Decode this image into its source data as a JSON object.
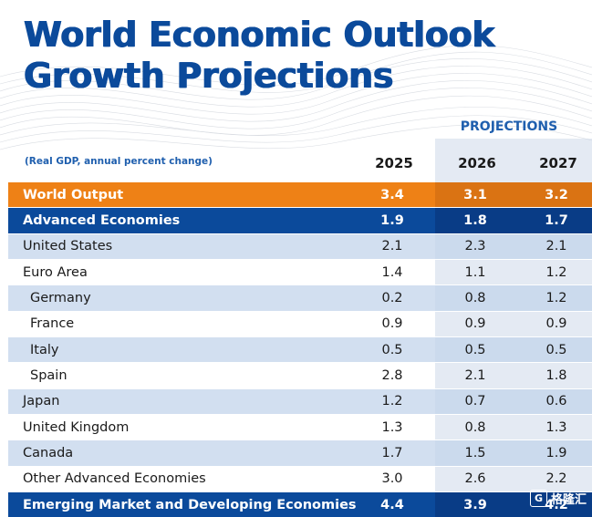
{
  "title_line1": "World Economic Outlook",
  "title_line2": "Growth Projections",
  "projections_label": "PROJECTIONS",
  "unit_label": "(Real GDP, annual percent change)",
  "years": [
    "2025",
    "2026",
    "2027"
  ],
  "rows": [
    {
      "label": "World Output",
      "values": [
        "3.4",
        "3.1",
        "3.2"
      ],
      "style": "orange"
    },
    {
      "label": "Advanced Economies",
      "values": [
        "1.9",
        "1.8",
        "1.7"
      ],
      "style": "navy"
    },
    {
      "label": "United States",
      "values": [
        "2.1",
        "2.3",
        "2.1"
      ],
      "style": "light"
    },
    {
      "label": "Euro Area",
      "values": [
        "1.4",
        "1.1",
        "1.2"
      ],
      "style": "white"
    },
    {
      "label": "Germany",
      "values": [
        "0.2",
        "0.8",
        "1.2"
      ],
      "style": "light",
      "indent": true
    },
    {
      "label": "France",
      "values": [
        "0.9",
        "0.9",
        "0.9"
      ],
      "style": "white",
      "indent": true
    },
    {
      "label": "Italy",
      "values": [
        "0.5",
        "0.5",
        "0.5"
      ],
      "style": "light",
      "indent": true
    },
    {
      "label": "Spain",
      "values": [
        "2.8",
        "2.1",
        "1.8"
      ],
      "style": "white",
      "indent": true
    },
    {
      "label": "Japan",
      "values": [
        "1.2",
        "0.7",
        "0.6"
      ],
      "style": "light"
    },
    {
      "label": "United Kingdom",
      "values": [
        "1.3",
        "0.8",
        "1.3"
      ],
      "style": "white"
    },
    {
      "label": "Canada",
      "values": [
        "1.7",
        "1.5",
        "1.9"
      ],
      "style": "light"
    },
    {
      "label": "Other Advanced Economies",
      "values": [
        "3.0",
        "2.6",
        "2.2"
      ],
      "style": "white"
    },
    {
      "label": "Emerging Market and Developing Economies",
      "values": [
        "4.4",
        "3.9",
        "4.2"
      ],
      "style": "navy"
    }
  ],
  "watermark": "格隆汇",
  "colors": {
    "navy": "#0b4a9b",
    "orange": "#ee8116",
    "light_row": "#c3d4eb",
    "accent_text": "#1f5fae"
  }
}
